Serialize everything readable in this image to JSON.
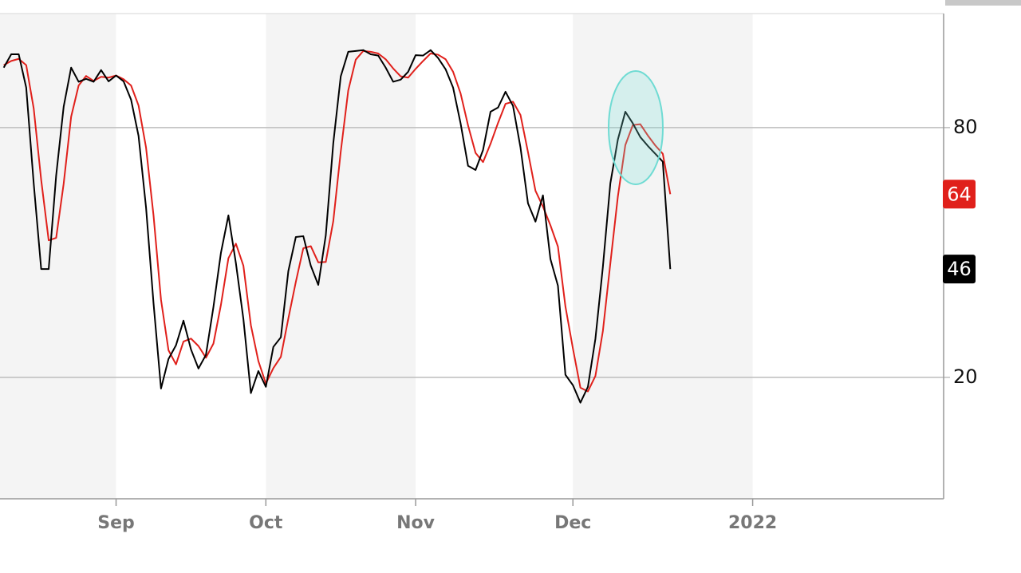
{
  "chart_data": {
    "type": "line",
    "categories": [
      null,
      null,
      null,
      null,
      null,
      null,
      null,
      null,
      null,
      null,
      null,
      null,
      null,
      null,
      null,
      "Sep",
      null,
      null,
      null,
      null,
      null,
      null,
      null,
      null,
      null,
      null,
      null,
      null,
      null,
      null,
      null,
      null,
      null,
      null,
      null,
      "Oct",
      null,
      null,
      null,
      null,
      null,
      null,
      null,
      null,
      null,
      null,
      null,
      null,
      null,
      null,
      null,
      null,
      null,
      null,
      null,
      "Nov",
      null,
      null,
      null,
      null,
      null,
      null,
      null,
      null,
      null,
      null,
      null,
      null,
      null,
      null,
      null,
      null,
      null,
      null,
      null,
      null,
      "Dec",
      null,
      null,
      null,
      null,
      null,
      null,
      null,
      null,
      null,
      null,
      null,
      null,
      null,
      null,
      null,
      null,
      null,
      null,
      null,
      null,
      null,
      null,
      null,
      "2022",
      null,
      null,
      null,
      null,
      null,
      null,
      null,
      null,
      null,
      null,
      null,
      null,
      null,
      null,
      null,
      null,
      null,
      null,
      null,
      null,
      null,
      null,
      null,
      null,
      null
    ],
    "series": [
      {
        "color": "#e0201b",
        "values": [
          95,
          96,
          96.5,
          95,
          84.6,
          67.4,
          52.9,
          53.5,
          66.5,
          82.6,
          90.1,
          92.4,
          91.2,
          92.2,
          92,
          92.5,
          91.6,
          90.1,
          85.3,
          75.2,
          58.9,
          38.6,
          26.5,
          23.1,
          28.6,
          29.3,
          27.5,
          24.7,
          28.1,
          37.4,
          48.6,
          52.1,
          46.8,
          32.5,
          23.9,
          18.5,
          22.2,
          24.9,
          34.1,
          42.9,
          51,
          51.5,
          47.6,
          47.7,
          57.5,
          74.2,
          88.9,
          96.3,
          98.4,
          98.2,
          97.8,
          96.4,
          94.2,
          92.3,
          92,
          94.1,
          96,
          97.8,
          97.5,
          96.4,
          93.4,
          88.2,
          80.5,
          73.9,
          71.7,
          76.1,
          81.1,
          85.7,
          86.2,
          83,
          74.1,
          64.8,
          61,
          56.5,
          51.4,
          37,
          26.9,
          17.5,
          16.6,
          20.3,
          31.1,
          47.4,
          63.4,
          75.8,
          80.6,
          80.8,
          78.1,
          75.7,
          73.7,
          64,
          null,
          null,
          null,
          null,
          null,
          null,
          null,
          null,
          null,
          null,
          null,
          null,
          null,
          null,
          null,
          null,
          null,
          null,
          null,
          null,
          null,
          null,
          null,
          null,
          null,
          null,
          null,
          null,
          null,
          null,
          null,
          null,
          null,
          null,
          null,
          null
        ]
      },
      {
        "color": "#000000",
        "values": [
          94.4,
          97.6,
          97.6,
          89.6,
          66.6,
          46,
          46,
          68.5,
          85,
          94.4,
          91,
          91.7,
          91,
          93.8,
          91.1,
          92.5,
          91.1,
          86.7,
          78,
          60.8,
          37.8,
          17.3,
          24.4,
          27.7,
          33.6,
          26.7,
          22.1,
          25.4,
          36.9,
          49.9,
          58.9,
          47.4,
          34,
          16.2,
          21.5,
          17.7,
          27.3,
          29.6,
          45.5,
          53.7,
          53.9,
          46.8,
          42.2,
          54.1,
          76.2,
          92.3,
          98.2,
          98.4,
          98.6,
          97.6,
          97.3,
          94.4,
          91,
          91.5,
          93.4,
          97.4,
          97.3,
          98.6,
          96.7,
          94,
          89.6,
          81,
          70.8,
          69.8,
          74.6,
          83.8,
          84.8,
          88.6,
          85.2,
          75.2,
          61.8,
          57.4,
          63.7,
          48.4,
          42,
          20.6,
          18.1,
          13.9,
          17.7,
          29.2,
          46.5,
          66.6,
          77.1,
          83.8,
          81,
          77.7,
          75.6,
          73.7,
          71.8,
          46,
          null,
          null,
          null,
          null,
          null,
          null,
          null,
          null,
          null,
          null,
          null,
          null,
          null,
          null,
          null,
          null,
          null,
          null,
          null,
          null,
          null,
          null,
          null,
          null,
          null,
          null,
          null,
          null,
          null,
          null,
          null,
          null,
          null,
          null,
          null,
          null
        ]
      }
    ],
    "ylim": [
      -9,
      107
    ],
    "yticks": [
      20,
      80
    ],
    "grid": true
  }
}
